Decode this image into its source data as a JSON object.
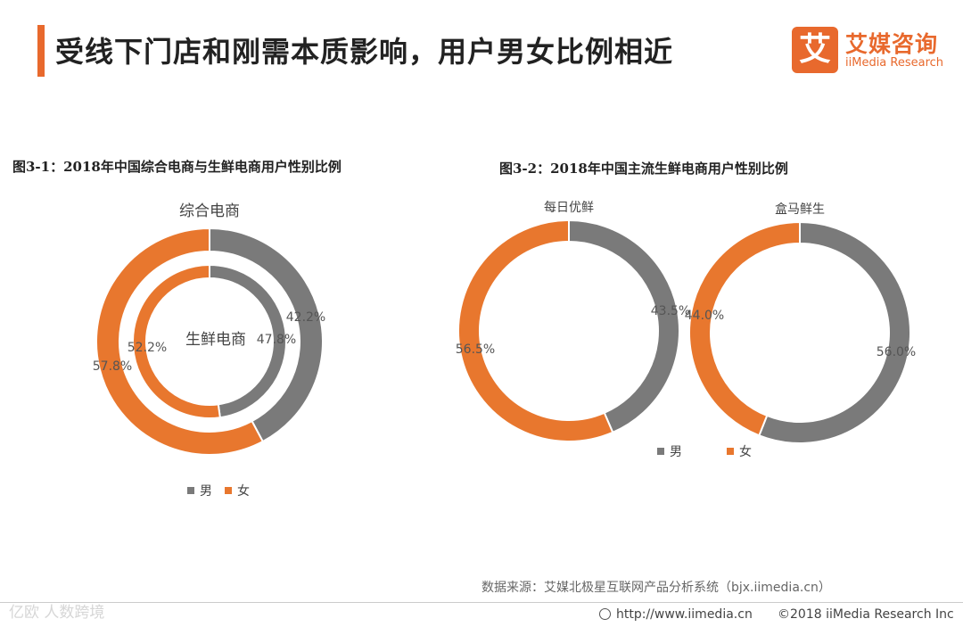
{
  "header": {
    "title": "受线下门店和刚需本质影响，用户男女比例相近"
  },
  "logo": {
    "name_cn": "艾媒咨询",
    "name_en": "iiMedia Research",
    "mark_char": "艾"
  },
  "colors": {
    "male": "#7a7a7a",
    "female": "#e8772e",
    "accent": "#e8692d"
  },
  "chart_data": [
    {
      "id": "fig3-1",
      "type": "pie",
      "title": "图3-1：2018年中国综合电商与生鲜电商用户性别比例",
      "rings": [
        {
          "name": "综合电商",
          "slices": [
            {
              "label": "男",
              "value": 42.2,
              "text": "42.2%"
            },
            {
              "label": "女",
              "value": 57.8,
              "text": "57.8%"
            }
          ]
        },
        {
          "name": "生鲜电商",
          "slices": [
            {
              "label": "男",
              "value": 47.8,
              "text": "47.8%"
            },
            {
              "label": "女",
              "value": 52.2,
              "text": "52.2%"
            }
          ]
        }
      ],
      "legend": [
        "男",
        "女"
      ]
    },
    {
      "id": "fig3-2",
      "type": "pie",
      "title": "图3-2：2018年中国主流生鲜电商用户性别比例",
      "rings": [
        {
          "name": "每日优鲜",
          "slices": [
            {
              "label": "男",
              "value": 43.5,
              "text": "43.5%"
            },
            {
              "label": "女",
              "value": 56.5,
              "text": "56.5%"
            }
          ]
        },
        {
          "name": "盒马鲜生",
          "slices": [
            {
              "label": "男",
              "value": 56.0,
              "text": "56.0%"
            },
            {
              "label": "女",
              "value": 44.0,
              "text": "44.0%"
            }
          ]
        }
      ],
      "legend": [
        "男",
        "女"
      ]
    }
  ],
  "source": "数据来源：艾媒北极星互联网产品分析系统（bjx.iimedia.cn）",
  "footer": {
    "url": "http://www.iimedia.cn",
    "copyright": "©2018  iiMedia Research  Inc"
  },
  "watermark": "亿欧 人数跨境"
}
